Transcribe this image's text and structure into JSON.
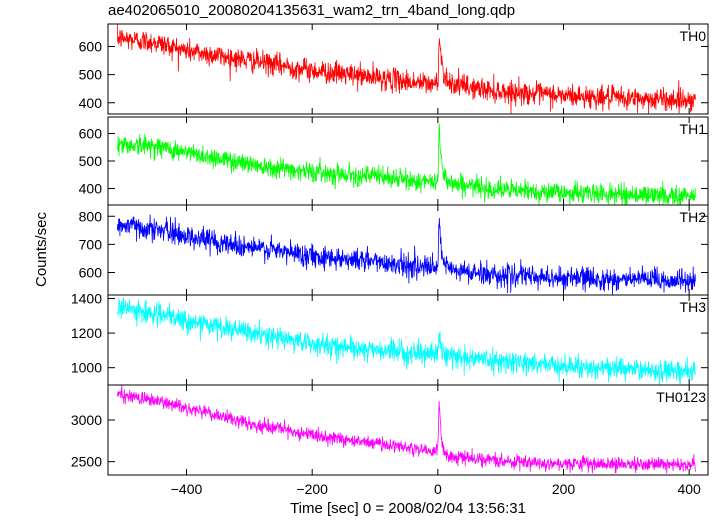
{
  "title": "ae402065010_20080204135631_wam2_trn_4band_long.qdp",
  "chart_data": {
    "type": "line",
    "title": "ae402065010_20080204135631_wam2_trn_4band_long.qdp",
    "xlabel": "Time [sec] 0 = 2008/02/04 13:56:31",
    "ylabel": "Counts/sec",
    "xlim": [
      -525,
      430
    ],
    "x_ticks": [
      -400,
      -200,
      0,
      200,
      400
    ],
    "x_tick_labels": [
      "−400",
      "−200",
      "0",
      "200",
      "400"
    ],
    "grid": false,
    "shared_x": true,
    "panels": [
      {
        "name": "TH0",
        "color": "#ff0000",
        "ylim": [
          360,
          680
        ],
        "y_ticks": [
          400,
          500,
          600
        ],
        "y_tick_labels": [
          "400",
          "500",
          "600"
        ],
        "trend_x": [
          -510,
          -450,
          -400,
          -300,
          -200,
          -100,
          -10,
          0,
          2,
          5,
          10,
          20,
          50,
          100,
          200,
          300,
          410
        ],
        "trend_y": [
          630,
          615,
          585,
          550,
          515,
          490,
          465,
          470,
          640,
          560,
          500,
          470,
          455,
          440,
          425,
          415,
          410
        ],
        "noise_std": 20
      },
      {
        "name": "TH1",
        "color": "#00ff00",
        "ylim": [
          340,
          660
        ],
        "y_ticks": [
          400,
          500,
          600
        ],
        "y_tick_labels": [
          "400",
          "500",
          "600"
        ],
        "trend_x": [
          -510,
          -450,
          -400,
          -300,
          -200,
          -100,
          -10,
          0,
          2,
          5,
          10,
          20,
          50,
          100,
          200,
          300,
          410
        ],
        "trend_y": [
          560,
          555,
          530,
          490,
          460,
          445,
          420,
          425,
          630,
          520,
          450,
          420,
          410,
          395,
          385,
          378,
          372
        ],
        "noise_std": 18
      },
      {
        "name": "TH2",
        "color": "#0000ff",
        "ylim": [
          520,
          840
        ],
        "y_ticks": [
          600,
          700,
          800
        ],
        "y_tick_labels": [
          "600",
          "700",
          "800"
        ],
        "trend_x": [
          -510,
          -450,
          -400,
          -300,
          -200,
          -100,
          -10,
          0,
          2,
          5,
          10,
          20,
          50,
          100,
          200,
          300,
          410
        ],
        "trend_y": [
          770,
          755,
          730,
          690,
          660,
          640,
          615,
          620,
          780,
          680,
          630,
          610,
          600,
          590,
          580,
          575,
          570
        ],
        "noise_std": 20
      },
      {
        "name": "TH3",
        "color": "#00ffff",
        "ylim": [
          900,
          1420
        ],
        "y_ticks": [
          1000,
          1200,
          1400
        ],
        "y_tick_labels": [
          "1000",
          "1200",
          "1400"
        ],
        "trend_x": [
          -510,
          -450,
          -400,
          -300,
          -200,
          -100,
          -10,
          0,
          2,
          5,
          10,
          20,
          50,
          100,
          200,
          300,
          410
        ],
        "trend_y": [
          1350,
          1310,
          1270,
          1200,
          1140,
          1100,
          1080,
          1085,
          1200,
          1110,
          1080,
          1070,
          1055,
          1040,
          1010,
          990,
          980
        ],
        "noise_std": 30
      },
      {
        "name": "TH0123",
        "color": "#ff00ff",
        "ylim": [
          2340,
          3420
        ],
        "y_ticks": [
          2500,
          3000
        ],
        "y_tick_labels": [
          "2500",
          "3000"
        ],
        "trend_x": [
          -510,
          -450,
          -400,
          -300,
          -200,
          -100,
          -10,
          0,
          2,
          5,
          10,
          20,
          50,
          100,
          200,
          300,
          410
        ],
        "trend_y": [
          3310,
          3230,
          3150,
          2950,
          2820,
          2720,
          2630,
          2640,
          3200,
          2820,
          2620,
          2560,
          2540,
          2510,
          2480,
          2470,
          2460
        ],
        "noise_std": 40
      }
    ]
  }
}
